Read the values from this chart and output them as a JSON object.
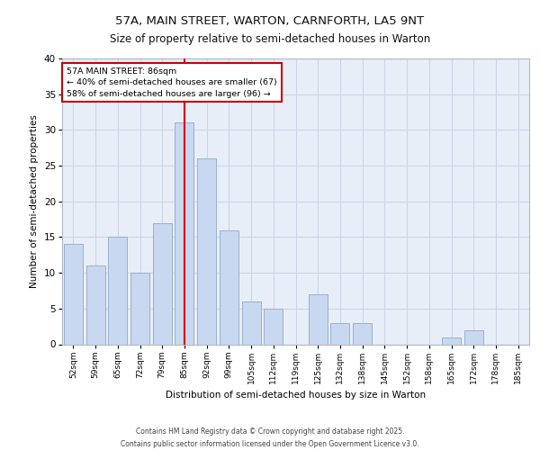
{
  "title1": "57A, MAIN STREET, WARTON, CARNFORTH, LA5 9NT",
  "title2": "Size of property relative to semi-detached houses in Warton",
  "xlabel": "Distribution of semi-detached houses by size in Warton",
  "ylabel": "Number of semi-detached properties",
  "categories": [
    "52sqm",
    "59sqm",
    "65sqm",
    "72sqm",
    "79sqm",
    "85sqm",
    "92sqm",
    "99sqm",
    "105sqm",
    "112sqm",
    "119sqm",
    "125sqm",
    "132sqm",
    "138sqm",
    "145sqm",
    "152sqm",
    "158sqm",
    "165sqm",
    "172sqm",
    "178sqm",
    "185sqm"
  ],
  "values": [
    14,
    11,
    15,
    10,
    17,
    31,
    26,
    16,
    6,
    5,
    0,
    7,
    3,
    3,
    0,
    0,
    0,
    1,
    2,
    0,
    0
  ],
  "bar_color": "#c8d8f0",
  "bar_edge_color": "#9ab0cc",
  "annotation_title": "57A MAIN STREET: 86sqm",
  "annotation_line1": "← 40% of semi-detached houses are smaller (67)",
  "annotation_line2": "58% of semi-detached houses are larger (96) →",
  "annotation_box_color": "#ffffff",
  "annotation_box_edge": "#cc0000",
  "vline_color": "#cc0000",
  "vline_index": 5,
  "ylim": [
    0,
    40
  ],
  "yticks": [
    0,
    5,
    10,
    15,
    20,
    25,
    30,
    35,
    40
  ],
  "grid_color": "#ccd5e5",
  "bg_color": "#e8eef8",
  "footer1": "Contains HM Land Registry data © Crown copyright and database right 2025.",
  "footer2": "Contains public sector information licensed under the Open Government Licence v3.0."
}
